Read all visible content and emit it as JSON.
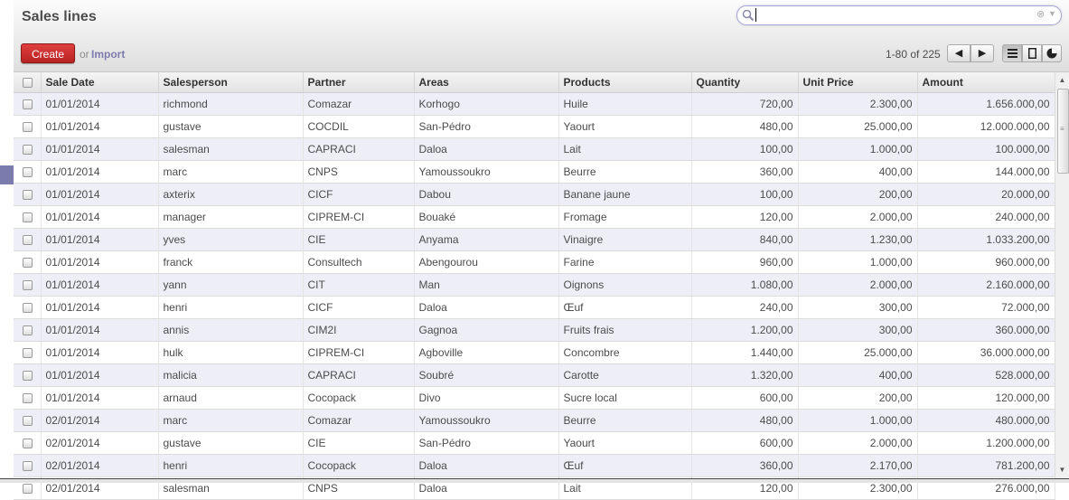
{
  "header": {
    "title": "Sales lines",
    "search": {
      "value": "",
      "placeholder": ""
    },
    "create_label": "Create",
    "or_label": "or",
    "import_label": "Import",
    "pager_text": "1-80 of 225"
  },
  "icons": {
    "search": "magnifier-icon",
    "clear": "clear-circle-icon",
    "drawer": "caret-down-icon",
    "prev": "arrow-left-icon",
    "next": "arrow-right-icon",
    "list_view": "list-view-icon",
    "form_view": "form-view-icon",
    "graph_view": "graph-view-icon"
  },
  "colors": {
    "accent": "#7c7bad",
    "create_button": "#c72c2c",
    "row_alt": "#eeeef6"
  },
  "table": {
    "columns": [
      "Sale Date",
      "Salesperson",
      "Partner",
      "Areas",
      "Products",
      "Quantity",
      "Unit Price",
      "Amount"
    ],
    "rows": [
      [
        "01/01/2014",
        "richmond",
        "Comazar",
        "Korhogo",
        "Huile",
        "720,00",
        "2.300,00",
        "1.656.000,00"
      ],
      [
        "01/01/2014",
        "gustave",
        "COCDIL",
        "San-Pédro",
        "Yaourt",
        "480,00",
        "25.000,00",
        "12.000.000,00"
      ],
      [
        "01/01/2014",
        "salesman",
        "CAPRACI",
        "Daloa",
        "Lait",
        "100,00",
        "1.000,00",
        "100.000,00"
      ],
      [
        "01/01/2014",
        "marc",
        "CNPS",
        "Yamoussoukro",
        "Beurre",
        "360,00",
        "400,00",
        "144.000,00"
      ],
      [
        "01/01/2014",
        "axterix",
        "CICF",
        "Dabou",
        "Banane jaune",
        "100,00",
        "200,00",
        "20.000,00"
      ],
      [
        "01/01/2014",
        "manager",
        "CIPREM-CI",
        "Bouaké",
        "Fromage",
        "120,00",
        "2.000,00",
        "240.000,00"
      ],
      [
        "01/01/2014",
        "yves",
        "CIE",
        "Anyama",
        "Vinaigre",
        "840,00",
        "1.230,00",
        "1.033.200,00"
      ],
      [
        "01/01/2014",
        "franck",
        "Consultech",
        "Abengourou",
        "Farine",
        "960,00",
        "1.000,00",
        "960.000,00"
      ],
      [
        "01/01/2014",
        "yann",
        "CIT",
        "Man",
        "Oignons",
        "1.080,00",
        "2.000,00",
        "2.160.000,00"
      ],
      [
        "01/01/2014",
        "henri",
        "CICF",
        "Daloa",
        "Œuf",
        "240,00",
        "300,00",
        "72.000,00"
      ],
      [
        "01/01/2014",
        "annis",
        "CIM2I",
        "Gagnoa",
        "Fruits frais",
        "1.200,00",
        "300,00",
        "360.000,00"
      ],
      [
        "01/01/2014",
        "hulk",
        "CIPREM-CI",
        "Agboville",
        "Concombre",
        "1.440,00",
        "25.000,00",
        "36.000.000,00"
      ],
      [
        "01/01/2014",
        "malicia",
        "CAPRACI",
        "Soubré",
        "Carotte",
        "1.320,00",
        "400,00",
        "528.000,00"
      ],
      [
        "01/01/2014",
        "arnaud",
        "Cocopack",
        "Divo",
        "Sucre local",
        "600,00",
        "200,00",
        "120.000,00"
      ],
      [
        "02/01/2014",
        "marc",
        "Comazar",
        "Yamoussoukro",
        "Beurre",
        "480,00",
        "1.000,00",
        "480.000,00"
      ],
      [
        "02/01/2014",
        "gustave",
        "CIE",
        "San-Pédro",
        "Yaourt",
        "600,00",
        "2.000,00",
        "1.200.000,00"
      ],
      [
        "02/01/2014",
        "henri",
        "Cocopack",
        "Daloa",
        "Œuf",
        "360,00",
        "2.170,00",
        "781.200,00"
      ],
      [
        "02/01/2014",
        "salesman",
        "CNPS",
        "Daloa",
        "Lait",
        "120,00",
        "2.300,00",
        "276.000,00"
      ]
    ]
  }
}
